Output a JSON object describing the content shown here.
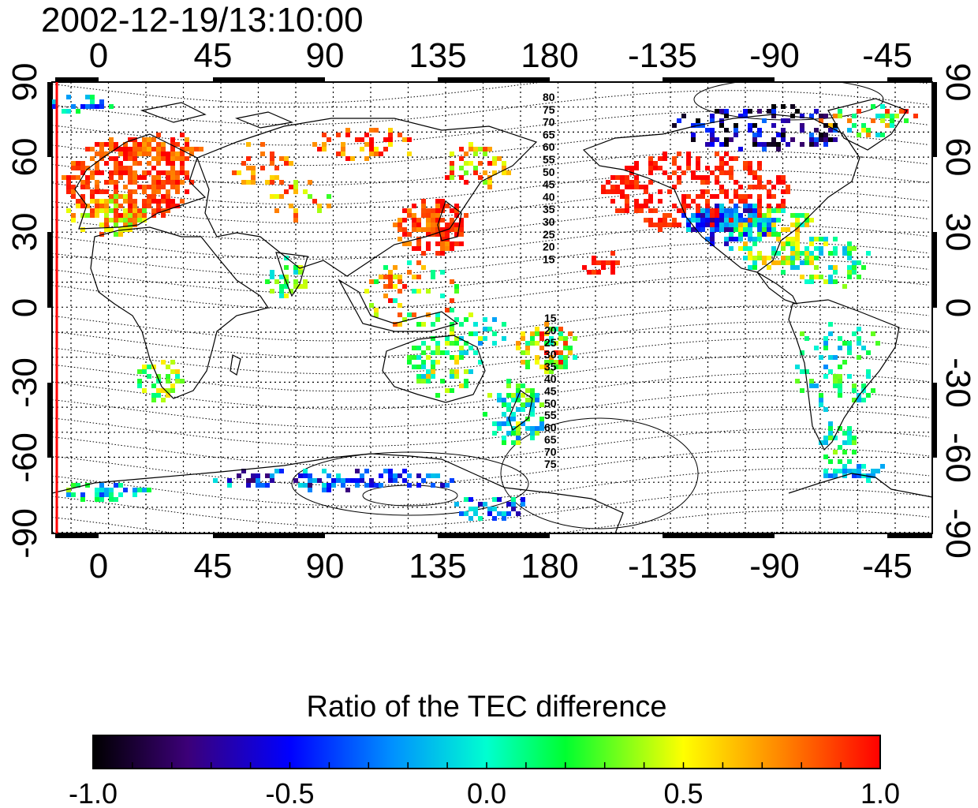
{
  "timestamp": "2002-12-19/13:10:00",
  "map": {
    "lon_ticks": [
      "0",
      "45",
      "90",
      "135",
      "180",
      "-135",
      "-90",
      "-45"
    ],
    "lat_ticks": [
      "90",
      "60",
      "30",
      "0",
      "-30",
      "-60",
      "-90"
    ],
    "contour_labels_north": [
      "80",
      "75",
      "70",
      "65",
      "60",
      "55",
      "50",
      "45",
      "40",
      "35",
      "30",
      "25",
      "20",
      "15"
    ],
    "contour_labels_south": [
      "15",
      "20",
      "25",
      "30",
      "35",
      "40",
      "45",
      "50",
      "55",
      "60",
      "65",
      "70",
      "75"
    ],
    "marker_line_color": "#ff0000",
    "gridlines": true,
    "coastlines": true
  },
  "colorbar": {
    "title": "Ratio of the TEC difference",
    "tick_labels": [
      "-1.0",
      "-0.5",
      "0.0",
      "0.5",
      "1.0"
    ],
    "range": [
      -1.0,
      1.0
    ],
    "colors": [
      "#000000",
      "#4a0080",
      "#0000ff",
      "#00e6ff",
      "#00ff40",
      "#ffff00",
      "#ff7f00",
      "#ff0000"
    ]
  }
}
